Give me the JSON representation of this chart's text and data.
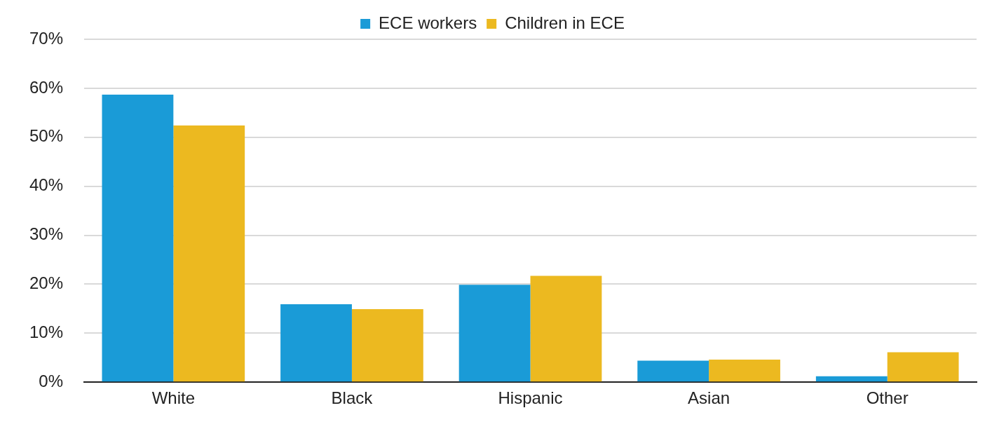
{
  "chart_data": {
    "type": "bar",
    "categories": [
      "White",
      "Black",
      "Hispanic",
      "Asian",
      "Other"
    ],
    "series": [
      {
        "name": "ECE workers",
        "color": "#1a9bd7",
        "values": [
          58.7,
          15.9,
          19.9,
          4.4,
          1.2
        ]
      },
      {
        "name": "Children in ECE",
        "color": "#ecb920",
        "values": [
          52.4,
          14.9,
          21.7,
          4.6,
          6.1
        ]
      }
    ],
    "ylim": [
      0,
      70
    ],
    "yticks": [
      {
        "value": 0,
        "label": "0%"
      },
      {
        "value": 10,
        "label": "10%"
      },
      {
        "value": 20,
        "label": "20%"
      },
      {
        "value": 30,
        "label": "30%"
      },
      {
        "value": 40,
        "label": "40%"
      },
      {
        "value": 50,
        "label": "50%"
      },
      {
        "value": 60,
        "label": "60%"
      },
      {
        "value": 70,
        "label": "70%"
      }
    ],
    "grid": "y",
    "legend": "top"
  }
}
